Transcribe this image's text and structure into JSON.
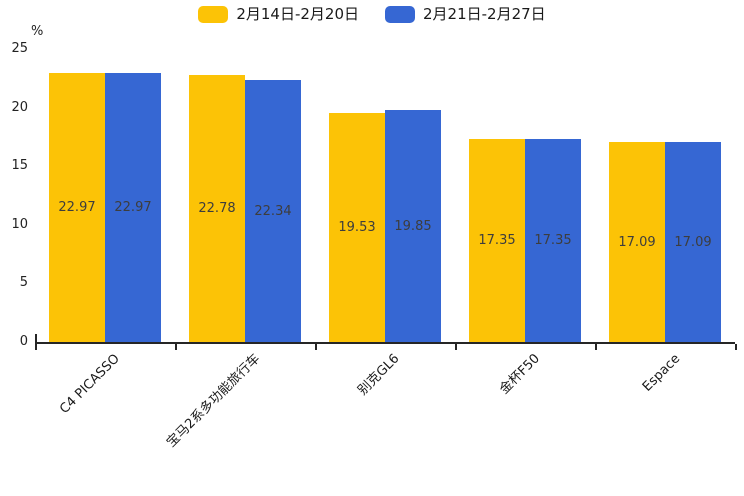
{
  "chart_data": {
    "type": "bar",
    "title": "",
    "categories": [
      "C4 PICASSO",
      "宝马2系多功能旅行车",
      "别克GL6",
      "金杯F50",
      "Espace"
    ],
    "series": [
      {
        "name": "2月14日-2月20日",
        "color": "#FCC306",
        "values": [
          22.97,
          22.78,
          19.53,
          17.35,
          17.09
        ]
      },
      {
        "name": "2月21日-2月27日",
        "color": "#3667D3",
        "values": [
          22.97,
          22.34,
          19.85,
          17.35,
          17.09
        ]
      }
    ],
    "xlabel": "",
    "ylabel": "%",
    "ylim": [
      0,
      25
    ],
    "yticks": [
      0,
      5,
      10,
      15,
      20,
      25
    ],
    "grid": false,
    "legend_position": "top",
    "value_labels": "inside-center",
    "xtick_rotation": 45
  }
}
